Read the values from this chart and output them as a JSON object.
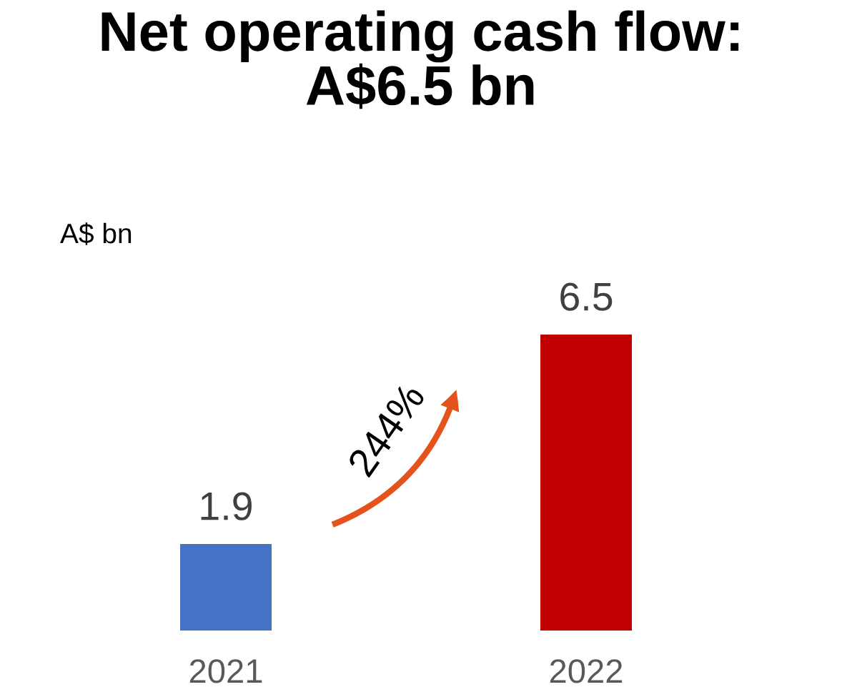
{
  "chart_data": {
    "type": "bar",
    "title": "Net operating cash flow:\nA$6.5 bn",
    "ylabel": "A$ bn",
    "categories": [
      "2021",
      "2022"
    ],
    "values": [
      1.9,
      6.5
    ],
    "colors": [
      "#4472c4",
      "#c00000"
    ],
    "data_labels": true,
    "grid": false,
    "legend": false,
    "annotations": [
      "244%"
    ]
  }
}
